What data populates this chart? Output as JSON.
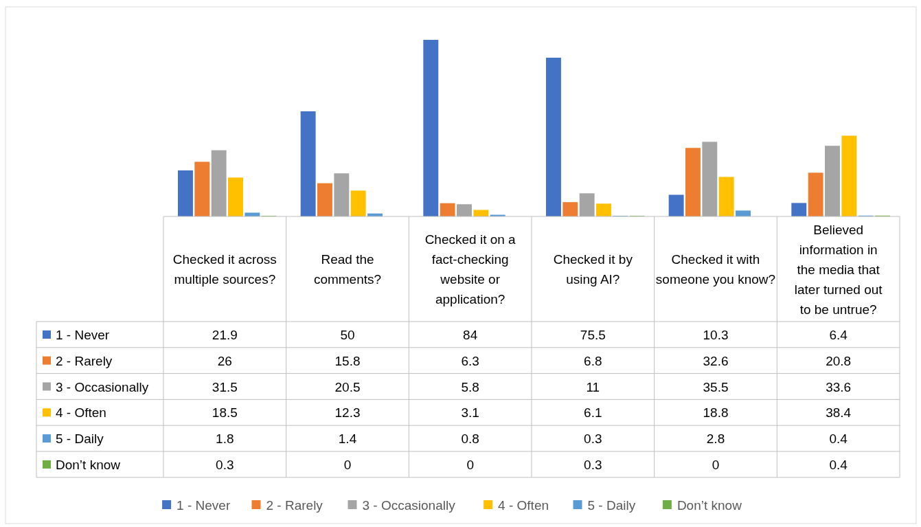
{
  "chart_data": {
    "type": "bar",
    "categories": [
      "Checked it across multiple sources?",
      "Read the comments?",
      "Checked it on a fact-checking website or application?",
      "Checked it by using AI?",
      "Checked it with someone you know?",
      "Believed information in the media that later turned out to be untrue?"
    ],
    "series": [
      {
        "name": "1 - Never",
        "color": "#4472c4",
        "values": [
          21.9,
          50,
          84,
          75.5,
          10.3,
          6.4
        ]
      },
      {
        "name": "2 - Rarely",
        "color": "#ed7d31",
        "values": [
          26,
          15.8,
          6.3,
          6.8,
          32.6,
          20.8
        ]
      },
      {
        "name": "3 - Occasionally",
        "color": "#a5a5a5",
        "values": [
          31.5,
          20.5,
          5.8,
          11,
          35.5,
          33.6
        ]
      },
      {
        "name": "4 - Often",
        "color": "#ffc000",
        "values": [
          18.5,
          12.3,
          3.1,
          6.1,
          18.8,
          38.4
        ]
      },
      {
        "name": "5 - Daily",
        "color": "#5b9bd5",
        "values": [
          1.8,
          1.4,
          0.8,
          0.3,
          2.8,
          0.4
        ]
      },
      {
        "name": "Don’t know",
        "color": "#70ad47",
        "values": [
          0.3,
          0,
          0,
          0.3,
          0,
          0.4
        ]
      }
    ],
    "data_labels": true,
    "legend": "bottom",
    "grid": false
  }
}
